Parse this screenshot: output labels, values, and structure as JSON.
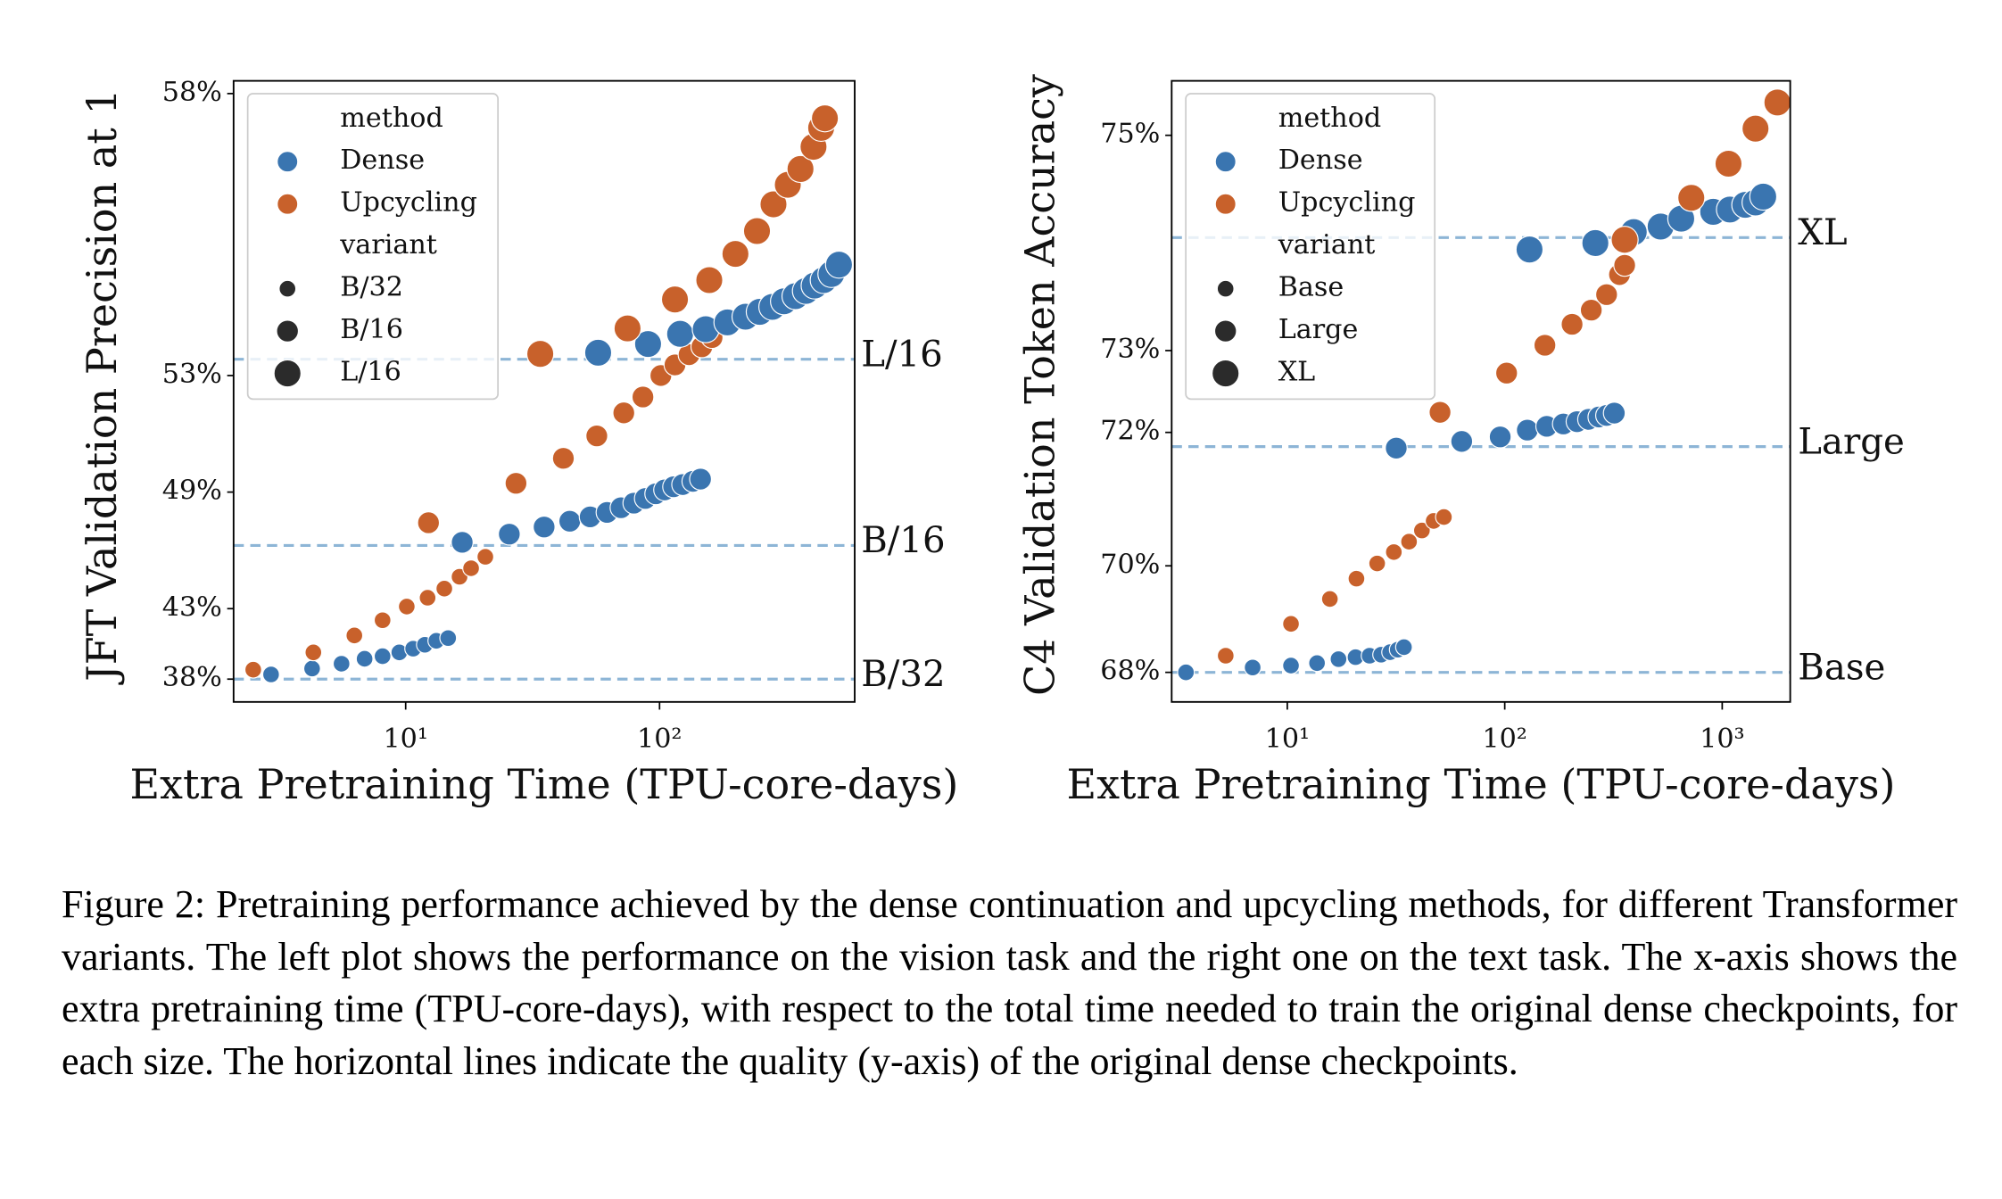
{
  "chart_data": [
    {
      "type": "scatter",
      "xlabel": "Extra Pretraining Time (TPU-core-days)",
      "ylabel": "JFT Validation Precision at 1",
      "xscale": "log",
      "xlim": [
        2.1,
        587
      ],
      "xticks": [
        {
          "value": 10,
          "label": "10¹"
        },
        {
          "value": 100,
          "label": "10²"
        }
      ],
      "ylim": [
        36.1,
        58.13
      ],
      "yticks": [
        {
          "value": 38,
          "label": "38%"
        },
        {
          "value": 43,
          "label": "43%"
        },
        {
          "value": 49,
          "label": "49%"
        },
        {
          "value": 53,
          "label": "53%"
        },
        {
          "value": 58,
          "label": "58%"
        }
      ],
      "hue_title": "method",
      "size_title": "variant",
      "methods": [
        {
          "name": "Dense",
          "color": "#3a75b0"
        },
        {
          "name": "Upcycling",
          "color": "#c8612b"
        }
      ],
      "variants": [
        "B/32",
        "B/16",
        "L/16"
      ],
      "hlines": [
        {
          "value": 38.0,
          "label": "B/32"
        },
        {
          "value": 46.55,
          "label": "B/16"
        },
        {
          "value": 53.44,
          "label": "L/16"
        }
      ],
      "series": [
        {
          "method": "Dense",
          "variant": "B/32",
          "x": [
            2.95,
            4.28,
            5.59,
            6.89,
            8.11,
            9.44,
            10.7,
            11.9,
            13.2,
            14.7
          ],
          "values": [
            38.37,
            38.83,
            39.2,
            39.57,
            39.76,
            40.04,
            40.31,
            40.59,
            40.87,
            41.06
          ]
        },
        {
          "method": "Upcycling",
          "variant": "B/32",
          "x": [
            2.51,
            4.33,
            6.28,
            8.11,
            10.1,
            12.2,
            14.2,
            16.3,
            18.1,
            20.6
          ],
          "values": [
            38.74,
            40.04,
            41.24,
            42.26,
            43.13,
            43.67,
            44.21,
            44.89,
            45.36,
            45.97
          ]
        },
        {
          "method": "Dense",
          "variant": "B/16",
          "x": [
            16.7,
            25.6,
            35.1,
            44.3,
            53.3,
            62.1,
            70.5,
            79.2,
            87.9,
            96.6,
            104.7,
            113.6,
            123.3,
            135.3,
            145
          ],
          "values": [
            46.71,
            47.11,
            47.45,
            47.72,
            47.92,
            48.12,
            48.33,
            48.53,
            48.73,
            48.93,
            49.09,
            49.22,
            49.31,
            49.44,
            49.53
          ]
        },
        {
          "method": "Upcycling",
          "variant": "B/16",
          "x": [
            12.3,
            27.2,
            41.8,
            56.6,
            72.3,
            86.0,
            101.2,
            115.0,
            130.7,
            146.8,
            161
          ],
          "values": [
            47.65,
            49.36,
            50.33,
            51.13,
            51.89,
            52.38,
            53.0,
            53.29,
            53.56,
            53.76,
            53.99
          ]
        },
        {
          "method": "Dense",
          "variant": "L/16",
          "x": [
            57.3,
            90.1,
            120.5,
            152,
            185,
            218,
            248,
            278,
            309,
            343,
            377,
            408,
            443,
            475,
            509
          ],
          "values": [
            53.61,
            53.83,
            54.08,
            54.19,
            54.35,
            54.48,
            54.59,
            54.7,
            54.82,
            54.93,
            55.04,
            55.15,
            55.26,
            55.38,
            55.56
          ]
        },
        {
          "method": "Upcycling",
          "variant": "L/16",
          "x": [
            33.9,
            74.8,
            115,
            157,
            199,
            242,
            281,
            320,
            359,
            404,
            433,
            448
          ],
          "values": [
            53.58,
            54.21,
            54.86,
            55.26,
            55.76,
            56.16,
            56.59,
            56.88,
            57.1,
            57.39,
            57.62,
            57.73
          ]
        }
      ]
    },
    {
      "type": "scatter",
      "xlabel": "Extra Pretraining Time (TPU-core-days)",
      "ylabel": "C4 Validation Token Accuracy",
      "xscale": "log",
      "xlim": [
        2.94,
        2055
      ],
      "xticks": [
        {
          "value": 10,
          "label": "10¹"
        },
        {
          "value": 100,
          "label": "10²"
        },
        {
          "value": 1000,
          "label": "10³"
        }
      ],
      "ylim": [
        67.37,
        75.39
      ],
      "yticks": [
        {
          "value": 68,
          "label": "68%"
        },
        {
          "value": 70,
          "label": "70%"
        },
        {
          "value": 72,
          "label": "72%"
        },
        {
          "value": 73,
          "label": "73%"
        },
        {
          "value": 75,
          "label": "75%"
        }
      ],
      "hue_title": "method",
      "size_title": "variant",
      "methods": [
        {
          "name": "Dense",
          "color": "#3a75b0"
        },
        {
          "name": "Upcycling",
          "color": "#c8612b"
        }
      ],
      "variants": [
        "Base",
        "Large",
        "XL"
      ],
      "hlines": [
        {
          "value": 68.0,
          "label": "Base"
        },
        {
          "value": 71.81,
          "label": "Large"
        },
        {
          "value": 74.15,
          "label": "XL"
        }
      ],
      "series": [
        {
          "method": "Dense",
          "variant": "Base",
          "x": [
            3.42,
            6.93,
            10.4,
            13.7,
            17.2,
            20.6,
            23.9,
            27.0,
            29.7,
            32.2,
            34.4
          ],
          "values": [
            68.0,
            68.1,
            68.14,
            68.19,
            68.27,
            68.31,
            68.34,
            68.36,
            68.41,
            68.46,
            68.51
          ]
        },
        {
          "method": "Upcycling",
          "variant": "Base",
          "x": [
            5.21,
            10.4,
            15.7,
            20.8,
            25.9,
            30.9,
            36.3,
            41.6,
            47.1,
            52.5
          ],
          "values": [
            68.34,
            68.96,
            69.42,
            69.78,
            70.04,
            70.23,
            70.4,
            70.58,
            70.73,
            70.79
          ]
        },
        {
          "method": "Dense",
          "variant": "Large",
          "x": [
            31.7,
            63.4,
            95.3,
            127,
            156,
            186,
            215,
            243,
            271,
            294,
            319
          ],
          "values": [
            71.79,
            71.88,
            71.94,
            72.03,
            72.08,
            72.11,
            72.14,
            72.17,
            72.2,
            72.22,
            72.25
          ]
        },
        {
          "method": "Upcycling",
          "variant": "Large",
          "x": [
            50.4,
            102,
            153,
            204,
            250,
            294,
            337,
            356
          ],
          "values": [
            72.26,
            72.74,
            73.06,
            73.29,
            73.44,
            73.6,
            73.8,
            73.89
          ]
        },
        {
          "method": "Dense",
          "variant": "XL",
          "x": [
            130,
            261,
            392,
            521,
            648,
            909,
            1085,
            1276,
            1423,
            1544
          ],
          "values": [
            74.04,
            74.1,
            74.2,
            74.25,
            74.32,
            74.38,
            74.4,
            74.44,
            74.46,
            74.51
          ]
        },
        {
          "method": "Upcycling",
          "variant": "XL",
          "x": [
            356,
            721,
            1069,
            1423,
            1794
          ],
          "values": [
            74.13,
            74.5,
            74.78,
            75.05,
            75.24
          ]
        }
      ]
    }
  ],
  "caption": "Figure 2: Pretraining performance achieved by the dense continuation and upcycling methods, for different Transformer variants. The left plot shows the performance on the vision task and the right one on the text task. The x-axis shows the extra pretraining time (TPU-core-days), with respect to the total time needed to train the original dense checkpoints, for each size. The horizontal lines indicate the quality (y-axis) of the original dense checkpoints."
}
